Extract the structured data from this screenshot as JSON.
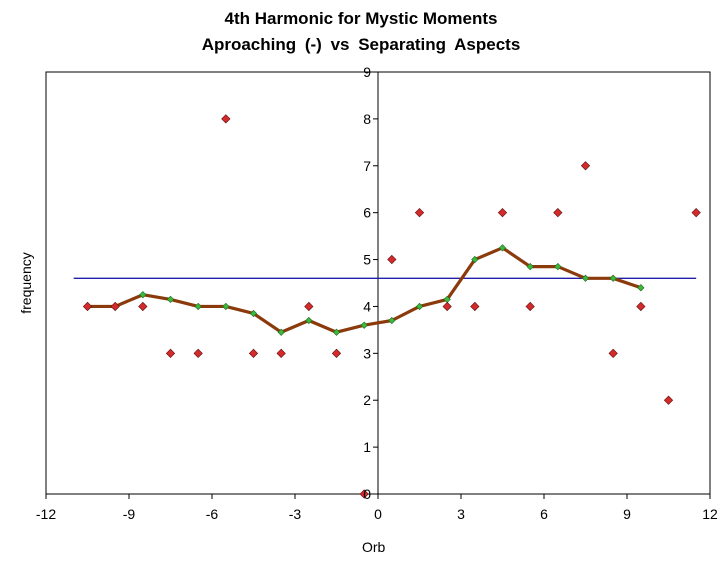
{
  "chart_data": {
    "type": "scatter",
    "title": "4th Harmonic for Mystic Moments",
    "subtitle": "Aproaching (-) vs Separating Aspects",
    "xlabel": "Orb",
    "ylabel": "frequency",
    "xlim": [
      -12,
      12
    ],
    "ylim": [
      0,
      9
    ],
    "x_ticks": [
      "-12",
      "-9",
      "-6",
      "-3",
      "0",
      "3",
      "6",
      "9",
      "12"
    ],
    "y_ticks": [
      "0",
      "1",
      "2",
      "3",
      "4",
      "5",
      "6",
      "7",
      "8",
      "9"
    ],
    "x_tick_values": [
      -12,
      -9,
      -6,
      -3,
      0,
      3,
      6,
      9,
      12
    ],
    "y_tick_values": [
      0,
      1,
      2,
      3,
      4,
      5,
      6,
      7,
      8,
      9
    ],
    "grid": false,
    "legend": "none",
    "series": [
      {
        "type": "scatter",
        "marker": "diamond",
        "color": "#d42a2a",
        "x": [
          -10.5,
          -9.5,
          -8.5,
          -7.5,
          -6.5,
          -5.5,
          -4.5,
          -3.5,
          -2.5,
          -1.5,
          -0.5,
          0.5,
          1.5,
          2.5,
          3.5,
          4.5,
          5.5,
          6.5,
          7.5,
          8.5,
          9.5,
          10.5,
          11.5
        ],
        "y": [
          4,
          4,
          4,
          3,
          3,
          8,
          3,
          3,
          4,
          3,
          0,
          5,
          6,
          4,
          4,
          6,
          4,
          6,
          7,
          3,
          4,
          2,
          6
        ]
      },
      {
        "type": "line",
        "color": "#8b3a0c",
        "marker": "diamond",
        "marker_color": "#3cb83c",
        "x": [
          -10.5,
          -9.5,
          -8.5,
          -7.5,
          -6.5,
          -5.5,
          -4.5,
          -3.5,
          -2.5,
          -1.5,
          -0.5,
          0.5,
          1.5,
          2.5,
          3.5,
          4.5,
          5.5,
          6.5,
          7.5,
          8.5,
          9.5
        ],
        "y": [
          4.0,
          4.0,
          4.25,
          4.15,
          4.0,
          4.0,
          3.85,
          3.45,
          3.7,
          3.45,
          3.6,
          3.7,
          4.0,
          4.15,
          5.0,
          5.25,
          4.85,
          4.85,
          4.6,
          4.6,
          4.4
        ]
      },
      {
        "type": "hline",
        "color": "#1f1fa8",
        "y": 4.6,
        "x_range": [
          -11,
          11.5
        ]
      }
    ],
    "colors": {
      "background": "#ffffff",
      "axis": "#000000",
      "scatter": "#d42a2a",
      "moving_average": "#8b3a0c",
      "moving_average_marker": "#3cb83c",
      "mean_line": "#1f1fa8"
    }
  }
}
